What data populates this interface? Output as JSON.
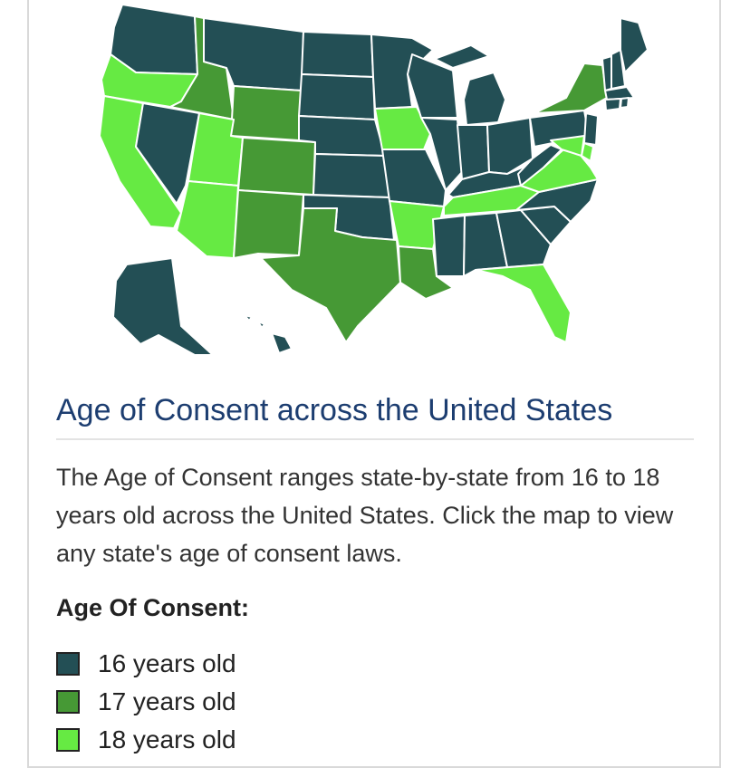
{
  "colors": {
    "age16": "#234f55",
    "age17": "#469935",
    "age18": "#66ea43",
    "title": "#1c3d70",
    "text": "#333333"
  },
  "map": {
    "states": [
      {
        "id": "WA",
        "age": 16
      },
      {
        "id": "OR",
        "age": 18
      },
      {
        "id": "CA",
        "age": 18
      },
      {
        "id": "ID",
        "age": 17
      },
      {
        "id": "NV",
        "age": 16
      },
      {
        "id": "MT",
        "age": 16
      },
      {
        "id": "WY",
        "age": 17
      },
      {
        "id": "UT",
        "age": 18
      },
      {
        "id": "AZ",
        "age": 18
      },
      {
        "id": "CO",
        "age": 17
      },
      {
        "id": "NM",
        "age": 17
      },
      {
        "id": "ND",
        "age": 16
      },
      {
        "id": "SD",
        "age": 16
      },
      {
        "id": "NE",
        "age": 16
      },
      {
        "id": "KS",
        "age": 16
      },
      {
        "id": "OK",
        "age": 16
      },
      {
        "id": "TX",
        "age": 17
      },
      {
        "id": "MN",
        "age": 16
      },
      {
        "id": "IA",
        "age": 18
      },
      {
        "id": "MO",
        "age": 16
      },
      {
        "id": "AR",
        "age": 18
      },
      {
        "id": "LA",
        "age": 17
      },
      {
        "id": "WI",
        "age": 16
      },
      {
        "id": "IL",
        "age": 16
      },
      {
        "id": "MI",
        "age": 16
      },
      {
        "id": "IN",
        "age": 16
      },
      {
        "id": "OH",
        "age": 16
      },
      {
        "id": "KY",
        "age": 16
      },
      {
        "id": "TN",
        "age": 18
      },
      {
        "id": "MS",
        "age": 16
      },
      {
        "id": "AL",
        "age": 16
      },
      {
        "id": "GA",
        "age": 16
      },
      {
        "id": "FL",
        "age": 18
      },
      {
        "id": "SC",
        "age": 16
      },
      {
        "id": "NC",
        "age": 16
      },
      {
        "id": "VA",
        "age": 18
      },
      {
        "id": "WV",
        "age": 16
      },
      {
        "id": "PA",
        "age": 16
      },
      {
        "id": "NY",
        "age": 17
      },
      {
        "id": "NJ",
        "age": 16
      },
      {
        "id": "DE",
        "age": 18
      },
      {
        "id": "MD",
        "age": 18
      },
      {
        "id": "VT",
        "age": 16
      },
      {
        "id": "NH",
        "age": 16
      },
      {
        "id": "ME",
        "age": 16
      },
      {
        "id": "MA",
        "age": 16
      },
      {
        "id": "CT",
        "age": 16
      },
      {
        "id": "RI",
        "age": 16
      },
      {
        "id": "AK",
        "age": 16
      },
      {
        "id": "HI",
        "age": 16
      }
    ]
  },
  "heading": "Age of Consent across the United States",
  "description": "The Age of Consent ranges state-by-state from 16 to 18 years old across the United States. Click the map to view any state's age of consent laws.",
  "legend": {
    "title": "Age Of Consent:",
    "items": [
      {
        "label": "16 years old",
        "color": "#234f55"
      },
      {
        "label": "17 years old",
        "color": "#469935"
      },
      {
        "label": "18 years old",
        "color": "#66ea43"
      }
    ]
  }
}
